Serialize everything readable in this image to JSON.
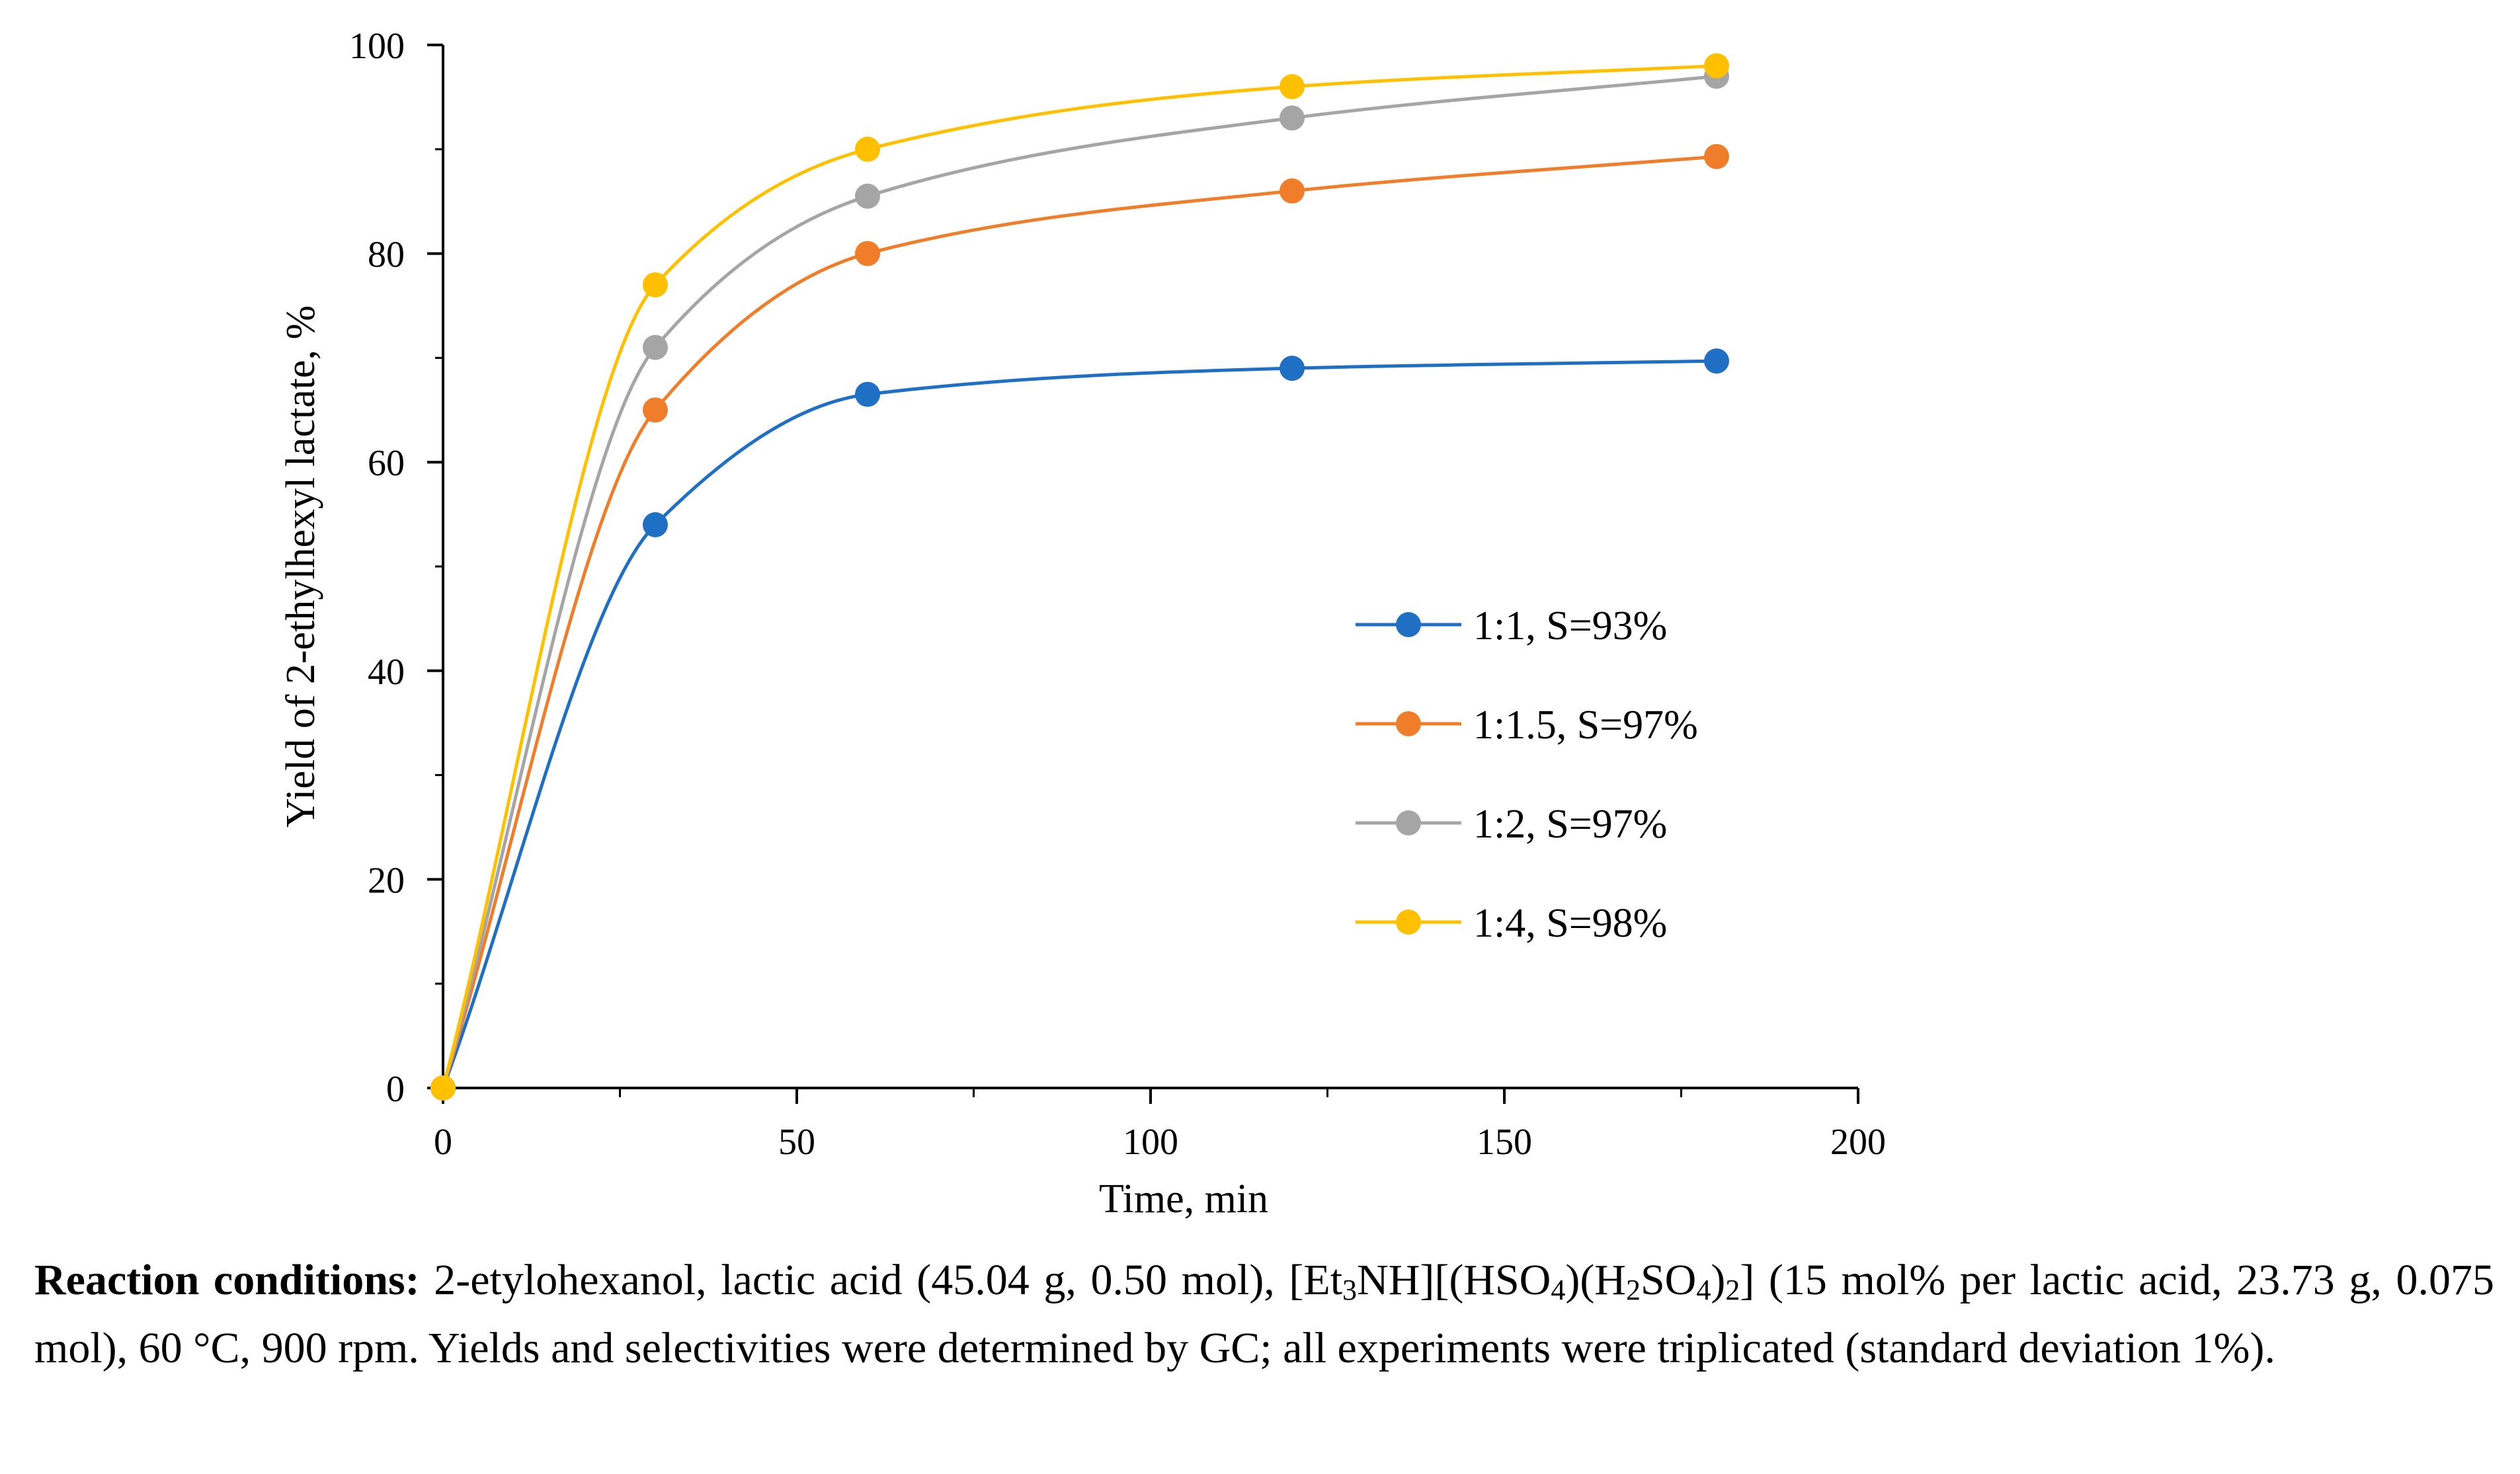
{
  "chart_data": {
    "type": "line",
    "xlabel": "Time, min",
    "ylabel": "Yield of 2-ethylhexyl lactate, %",
    "xlim": [
      0,
      200
    ],
    "ylim": [
      0,
      100
    ],
    "xticks": [
      0,
      50,
      100,
      150,
      200
    ],
    "yticks": [
      0,
      20,
      40,
      60,
      80,
      100
    ],
    "x": [
      0,
      30,
      60,
      120,
      180
    ],
    "grid": false,
    "legend_position": "right",
    "series": [
      {
        "name": "1:1, S=93%",
        "color": "#1f6fc4",
        "values": [
          0,
          54,
          66.5,
          69,
          69.7
        ]
      },
      {
        "name": "1:1.5, S=97%",
        "color": "#f07d2a",
        "values": [
          0,
          65,
          80,
          86,
          89.3
        ]
      },
      {
        "name": "1:2, S=97%",
        "color": "#a5a5a5",
        "values": [
          0,
          71,
          85.5,
          93,
          97
        ]
      },
      {
        "name": "1:4, S=98%",
        "color": "#ffc000",
        "values": [
          0,
          77,
          90,
          96,
          98
        ]
      }
    ]
  },
  "caption": {
    "heading": "Reaction conditions:",
    "part1": " 2-etylohexanol, lactic acid (45.04 g, 0.50 mol), [Et",
    "sub1": "3",
    "part2": "NH][(HSO",
    "sub2": "4",
    "part3": ")(H",
    "sub3": "2",
    "part4": "SO",
    "sub4": "4",
    "part5": ")",
    "sub5": "2",
    "part6": "] (15 mol% per lactic acid, 23.73 g, 0.075 mol), 60 °C, 900 rpm. Yields and selectivities were determined by GC; all experiments were triplicated (standard deviation 1%)."
  }
}
